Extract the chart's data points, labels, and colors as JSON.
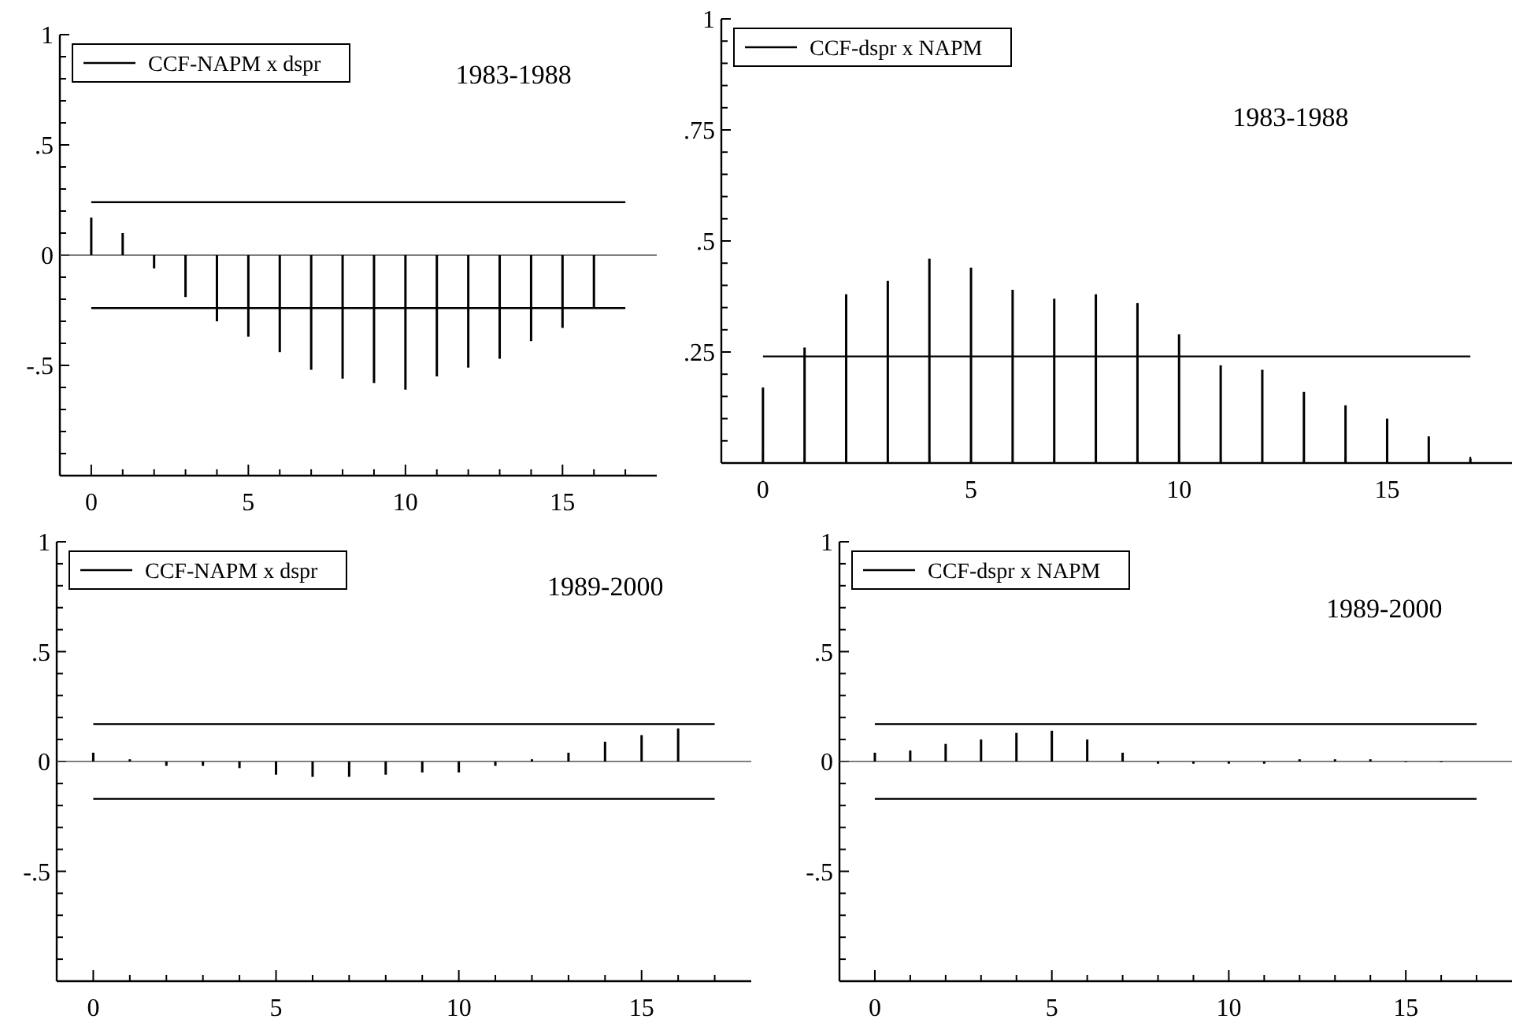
{
  "chart_data": [
    {
      "type": "bar",
      "x": [
        0,
        1,
        2,
        3,
        4,
        5,
        6,
        7,
        8,
        9,
        10,
        11,
        12,
        13,
        14,
        15,
        16
      ],
      "series": [
        {
          "name": "CCF-NAPM x dspr",
          "color": "#000000",
          "values": [
            0.17,
            0.1,
            -0.06,
            -0.19,
            -0.3,
            -0.37,
            -0.44,
            -0.52,
            -0.56,
            -0.58,
            -0.61,
            -0.55,
            -0.51,
            -0.47,
            -0.39,
            -0.33,
            -0.24
          ]
        }
      ],
      "annotations": [
        "1983-1988"
      ],
      "ref_lines": [
        {
          "axis": "y",
          "value": 0.24,
          "color": "#000000"
        },
        {
          "axis": "y",
          "value": -0.24,
          "color": "#000000"
        }
      ],
      "xlim": [
        -1,
        18
      ],
      "xticks": [
        0,
        {
          "value": 1,
          "label": null
        },
        {
          "value": 2,
          "label": null
        },
        {
          "value": 3,
          "label": null
        },
        {
          "value": 4,
          "label": null
        },
        5,
        {
          "value": 6,
          "label": null
        },
        {
          "value": 7,
          "label": null
        },
        {
          "value": 8,
          "label": null
        },
        {
          "value": 9,
          "label": null
        },
        10,
        {
          "value": 11,
          "label": null
        },
        {
          "value": 12,
          "label": null
        },
        {
          "value": 13,
          "label": null
        },
        {
          "value": 14,
          "label": null
        },
        15,
        {
          "value": 16,
          "label": null
        },
        {
          "value": 17,
          "label": null
        }
      ],
      "ylim": [
        -1,
        1
      ],
      "yticks": [
        {
          "value": -1,
          "label": null
        },
        {
          "value": -0.9,
          "label": null
        },
        {
          "value": -0.8,
          "label": null
        },
        {
          "value": -0.7,
          "label": null
        },
        {
          "value": -0.6,
          "label": null
        },
        {
          "value": -0.5,
          "label": "-.5"
        },
        {
          "value": -0.4,
          "label": null
        },
        {
          "value": -0.3,
          "label": null
        },
        {
          "value": -0.2,
          "label": null
        },
        {
          "value": -0.1,
          "label": null
        },
        {
          "value": 0,
          "label": "0"
        },
        {
          "value": 0.1,
          "label": null
        },
        {
          "value": 0.2,
          "label": null
        },
        {
          "value": 0.3,
          "label": null
        },
        {
          "value": 0.4,
          "label": null
        },
        {
          "value": 0.5,
          "label": ".5"
        },
        {
          "value": 0.6,
          "label": null
        },
        {
          "value": 0.7,
          "label": null
        },
        {
          "value": 0.8,
          "label": null
        },
        {
          "value": 0.9,
          "label": null
        },
        {
          "value": 1,
          "label": "1"
        }
      ],
      "legend": "top left"
    },
    {
      "type": "bar",
      "x": [
        0,
        1,
        2,
        3,
        4,
        5,
        6,
        7,
        8,
        9,
        10,
        11,
        12,
        13,
        14,
        15,
        16,
        17
      ],
      "series": [
        {
          "name": "CCF-dspr x NAPM",
          "color": "#000000",
          "values": [
            0.17,
            0.26,
            0.38,
            0.41,
            0.46,
            0.44,
            0.39,
            0.37,
            0.38,
            0.36,
            0.29,
            0.22,
            0.21,
            0.16,
            0.13,
            0.1,
            0.06,
            0.01
          ]
        }
      ],
      "annotations": [
        "1983-1988"
      ],
      "ref_lines": [
        {
          "axis": "y",
          "value": 0.24,
          "color": "#000000"
        }
      ],
      "xlim": [
        -1,
        18
      ],
      "xticks": [
        0,
        {
          "value": 1,
          "label": null
        },
        {
          "value": 2,
          "label": null
        },
        {
          "value": 3,
          "label": null
        },
        {
          "value": 4,
          "label": null
        },
        5,
        {
          "value": 6,
          "label": null
        },
        {
          "value": 7,
          "label": null
        },
        {
          "value": 8,
          "label": null
        },
        {
          "value": 9,
          "label": null
        },
        10,
        {
          "value": 11,
          "label": null
        },
        {
          "value": 12,
          "label": null
        },
        {
          "value": 13,
          "label": null
        },
        {
          "value": 14,
          "label": null
        },
        15,
        {
          "value": 16,
          "label": null
        },
        {
          "value": 17,
          "label": null
        }
      ],
      "ylim": [
        0,
        1
      ],
      "yticks": [
        {
          "value": 0,
          "label": null
        },
        {
          "value": 0.05,
          "label": null
        },
        {
          "value": 0.1,
          "label": null
        },
        {
          "value": 0.15,
          "label": null
        },
        {
          "value": 0.2,
          "label": null
        },
        {
          "value": 0.25,
          "label": ".25"
        },
        {
          "value": 0.3,
          "label": null
        },
        {
          "value": 0.35,
          "label": null
        },
        {
          "value": 0.4,
          "label": null
        },
        {
          "value": 0.45,
          "label": null
        },
        {
          "value": 0.5,
          "label": ".5"
        },
        {
          "value": 0.55,
          "label": null
        },
        {
          "value": 0.6,
          "label": null
        },
        {
          "value": 0.65,
          "label": null
        },
        {
          "value": 0.7,
          "label": null
        },
        {
          "value": 0.75,
          "label": ".75"
        },
        {
          "value": 0.8,
          "label": null
        },
        {
          "value": 0.85,
          "label": null
        },
        {
          "value": 0.9,
          "label": null
        },
        {
          "value": 0.95,
          "label": null
        },
        {
          "value": 1,
          "label": "1"
        }
      ],
      "legend": "top left"
    },
    {
      "type": "bar",
      "x": [
        0,
        1,
        2,
        3,
        4,
        5,
        6,
        7,
        8,
        9,
        10,
        11,
        12,
        13,
        14,
        15,
        16
      ],
      "series": [
        {
          "name": "CCF-NAPM x dspr",
          "color": "#000000",
          "values": [
            0.04,
            0.01,
            -0.02,
            -0.02,
            -0.03,
            -0.06,
            -0.07,
            -0.07,
            -0.06,
            -0.05,
            -0.05,
            -0.02,
            0.01,
            0.04,
            0.09,
            0.12,
            0.15
          ]
        }
      ],
      "annotations": [
        "1989-2000"
      ],
      "ref_lines": [
        {
          "axis": "y",
          "value": 0.17,
          "color": "#000000"
        },
        {
          "axis": "y",
          "value": -0.17,
          "color": "#000000"
        }
      ],
      "xlim": [
        -1,
        18
      ],
      "xticks": [
        0,
        {
          "value": 1,
          "label": null
        },
        {
          "value": 2,
          "label": null
        },
        {
          "value": 3,
          "label": null
        },
        {
          "value": 4,
          "label": null
        },
        5,
        {
          "value": 6,
          "label": null
        },
        {
          "value": 7,
          "label": null
        },
        {
          "value": 8,
          "label": null
        },
        {
          "value": 9,
          "label": null
        },
        10,
        {
          "value": 11,
          "label": null
        },
        {
          "value": 12,
          "label": null
        },
        {
          "value": 13,
          "label": null
        },
        {
          "value": 14,
          "label": null
        },
        15,
        {
          "value": 16,
          "label": null
        },
        {
          "value": 17,
          "label": null
        }
      ],
      "ylim": [
        -1,
        1
      ],
      "yticks": [
        {
          "value": -1,
          "label": null
        },
        {
          "value": -0.9,
          "label": null
        },
        {
          "value": -0.8,
          "label": null
        },
        {
          "value": -0.7,
          "label": null
        },
        {
          "value": -0.6,
          "label": null
        },
        {
          "value": -0.5,
          "label": "-.5"
        },
        {
          "value": -0.4,
          "label": null
        },
        {
          "value": -0.3,
          "label": null
        },
        {
          "value": -0.2,
          "label": null
        },
        {
          "value": -0.1,
          "label": null
        },
        {
          "value": 0,
          "label": "0"
        },
        {
          "value": 0.1,
          "label": null
        },
        {
          "value": 0.2,
          "label": null
        },
        {
          "value": 0.3,
          "label": null
        },
        {
          "value": 0.4,
          "label": null
        },
        {
          "value": 0.5,
          "label": ".5"
        },
        {
          "value": 0.6,
          "label": null
        },
        {
          "value": 0.7,
          "label": null
        },
        {
          "value": 0.8,
          "label": null
        },
        {
          "value": 0.9,
          "label": null
        },
        {
          "value": 1,
          "label": "1"
        }
      ],
      "legend": "top left"
    },
    {
      "type": "bar",
      "x": [
        0,
        1,
        2,
        3,
        4,
        5,
        6,
        7,
        8,
        9,
        10,
        11,
        12,
        13,
        14,
        15,
        16
      ],
      "series": [
        {
          "name": "CCF-dspr x NAPM",
          "color": "#000000",
          "values": [
            0.04,
            0.05,
            0.08,
            0.1,
            0.13,
            0.14,
            0.1,
            0.04,
            -0.01,
            -0.01,
            -0.01,
            -0.01,
            0.01,
            0.01,
            0.01,
            0,
            0
          ]
        }
      ],
      "annotations": [
        "1989-2000"
      ],
      "ref_lines": [
        {
          "axis": "y",
          "value": 0.17,
          "color": "#000000"
        },
        {
          "axis": "y",
          "value": -0.17,
          "color": "#000000"
        }
      ],
      "xlim": [
        -1,
        18
      ],
      "xticks": [
        0,
        {
          "value": 1,
          "label": null
        },
        {
          "value": 2,
          "label": null
        },
        {
          "value": 3,
          "label": null
        },
        {
          "value": 4,
          "label": null
        },
        5,
        {
          "value": 6,
          "label": null
        },
        {
          "value": 7,
          "label": null
        },
        {
          "value": 8,
          "label": null
        },
        {
          "value": 9,
          "label": null
        },
        10,
        {
          "value": 11,
          "label": null
        },
        {
          "value": 12,
          "label": null
        },
        {
          "value": 13,
          "label": null
        },
        {
          "value": 14,
          "label": null
        },
        15,
        {
          "value": 16,
          "label": null
        },
        {
          "value": 17,
          "label": null
        }
      ],
      "ylim": [
        -1,
        1
      ],
      "yticks": [
        {
          "value": -1,
          "label": null
        },
        {
          "value": -0.9,
          "label": null
        },
        {
          "value": -0.8,
          "label": null
        },
        {
          "value": -0.7,
          "label": null
        },
        {
          "value": -0.6,
          "label": null
        },
        {
          "value": -0.5,
          "label": "-.5"
        },
        {
          "value": -0.4,
          "label": null
        },
        {
          "value": -0.3,
          "label": null
        },
        {
          "value": -0.2,
          "label": null
        },
        {
          "value": -0.1,
          "label": null
        },
        {
          "value": 0,
          "label": "0"
        },
        {
          "value": 0.1,
          "label": null
        },
        {
          "value": 0.2,
          "label": null
        },
        {
          "value": 0.3,
          "label": null
        },
        {
          "value": 0.4,
          "label": null
        },
        {
          "value": 0.5,
          "label": ".5"
        },
        {
          "value": 0.6,
          "label": null
        },
        {
          "value": 0.7,
          "label": null
        },
        {
          "value": 0.8,
          "label": null
        },
        {
          "value": 0.9,
          "label": null
        },
        {
          "value": 1,
          "label": "1"
        }
      ],
      "legend": "top left"
    }
  ]
}
